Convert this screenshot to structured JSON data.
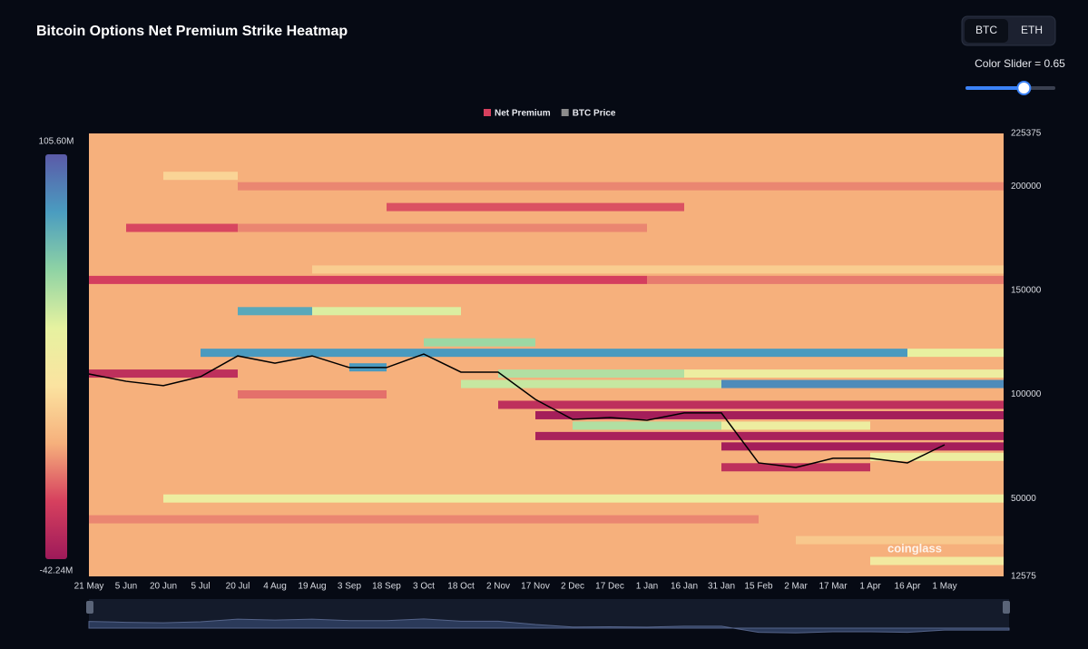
{
  "title": "Bitcoin Options Net Premium Strike Heatmap",
  "toggle": {
    "options": [
      "BTC",
      "ETH"
    ],
    "active": "BTC"
  },
  "slider": {
    "label": "Color Slider = 0.65",
    "value": 0.65
  },
  "watermark": "coinglass",
  "chart_data": {
    "type": "heatmap",
    "categories": [
      "21 May",
      "5 Jun",
      "20 Jun",
      "5 Jul",
      "20 Jul",
      "4 Aug",
      "19 Aug",
      "3 Sep",
      "18 Sep",
      "3 Oct",
      "18 Oct",
      "2 Nov",
      "17 Nov",
      "2 Dec",
      "17 Dec",
      "1 Jan",
      "16 Jan",
      "31 Jan",
      "15 Feb",
      "2 Mar",
      "17 Mar",
      "1 Apr",
      "16 Apr",
      "1 May"
    ],
    "ylim": [
      12575,
      225375
    ],
    "yticks": [
      12575,
      50000,
      100000,
      150000,
      200000,
      225375
    ],
    "clim": [
      -42.24,
      105.6
    ],
    "cticks": [
      {
        "value": -42.24,
        "label": "-42.24M"
      },
      {
        "value": 105.6,
        "label": "105.60M"
      }
    ],
    "colorscale": [
      "#9e1a5a",
      "#d6405e",
      "#f6b07c",
      "#fbe3a0",
      "#e6f2a0",
      "#8fd3a4",
      "#4a9cc0",
      "#5b5aa8"
    ],
    "base_value": 0,
    "bands": [
      {
        "strike": 200000,
        "start": "20 Jul",
        "end": "1 May",
        "value": -8
      },
      {
        "strike": 205000,
        "start": "20 Jun",
        "end": "5 Jul",
        "value": 15
      },
      {
        "strike": 190000,
        "start": "18 Sep",
        "end": "1 Jan",
        "value": -18
      },
      {
        "strike": 180000,
        "start": "5 Jun",
        "end": "5 Jul",
        "value": -20
      },
      {
        "strike": 180000,
        "start": "20 Jul",
        "end": "17 Dec",
        "value": -8
      },
      {
        "strike": 160000,
        "start": "19 Aug",
        "end": "1 May",
        "value": 12
      },
      {
        "strike": 155000,
        "start": "21 May",
        "end": "17 Dec",
        "value": -22
      },
      {
        "strike": 155000,
        "start": "1 Jan",
        "end": "1 May",
        "value": -10
      },
      {
        "strike": 140000,
        "start": "20 Jul",
        "end": "4 Aug",
        "value": 80
      },
      {
        "strike": 140000,
        "start": "19 Aug",
        "end": "3 Oct",
        "value": 45
      },
      {
        "strike": 120000,
        "start": "5 Jul",
        "end": "1 Apr",
        "value": 85
      },
      {
        "strike": 120000,
        "start": "16 Apr",
        "end": "1 May",
        "value": 40
      },
      {
        "strike": 125000,
        "start": "3 Oct",
        "end": "2 Nov",
        "value": 60
      },
      {
        "strike": 113000,
        "start": "3 Sep",
        "end": "3 Sep",
        "value": 85
      },
      {
        "strike": 110000,
        "start": "21 May",
        "end": "5 Jul",
        "value": -30
      },
      {
        "strike": 110000,
        "start": "2 Nov",
        "end": "1 Jan",
        "value": 55
      },
      {
        "strike": 110000,
        "start": "16 Jan",
        "end": "1 May",
        "value": 35
      },
      {
        "strike": 105000,
        "start": "18 Oct",
        "end": "16 Jan",
        "value": 50
      },
      {
        "strike": 105000,
        "start": "31 Jan",
        "end": "1 May",
        "value": 90
      },
      {
        "strike": 100000,
        "start": "20 Jul",
        "end": "3 Sep",
        "value": -12
      },
      {
        "strike": 95000,
        "start": "2 Nov",
        "end": "1 May",
        "value": -30
      },
      {
        "strike": 90000,
        "start": "17 Nov",
        "end": "1 May",
        "value": -40
      },
      {
        "strike": 85000,
        "start": "2 Dec",
        "end": "16 Jan",
        "value": 55
      },
      {
        "strike": 85000,
        "start": "31 Jan",
        "end": "17 Mar",
        "value": 35
      },
      {
        "strike": 80000,
        "start": "17 Nov",
        "end": "1 May",
        "value": -38
      },
      {
        "strike": 75000,
        "start": "31 Jan",
        "end": "1 May",
        "value": -40
      },
      {
        "strike": 70000,
        "start": "1 Apr",
        "end": "1 May",
        "value": 35
      },
      {
        "strike": 65000,
        "start": "31 Jan",
        "end": "17 Mar",
        "value": -30
      },
      {
        "strike": 50000,
        "start": "20 Jun",
        "end": "1 May",
        "value": 35
      },
      {
        "strike": 40000,
        "start": "21 May",
        "end": "31 Jan",
        "value": -8
      },
      {
        "strike": 30000,
        "start": "2 Mar",
        "end": "1 May",
        "value": 10
      },
      {
        "strike": 20000,
        "start": "1 Apr",
        "end": "1 May",
        "value": 30
      }
    ],
    "series": [
      {
        "name": "Net Premium",
        "color": "#d6405e"
      },
      {
        "name": "BTC Price",
        "color": "#000000",
        "legend_color": "#8c8c8c",
        "values": [
          109800,
          106300,
          104200,
          108500,
          118500,
          115000,
          118500,
          112900,
          112900,
          119400,
          110700,
          110700,
          97600,
          88000,
          88900,
          87600,
          91100,
          91100,
          67100,
          64900,
          69300,
          69300,
          67100,
          75800
        ]
      }
    ]
  }
}
